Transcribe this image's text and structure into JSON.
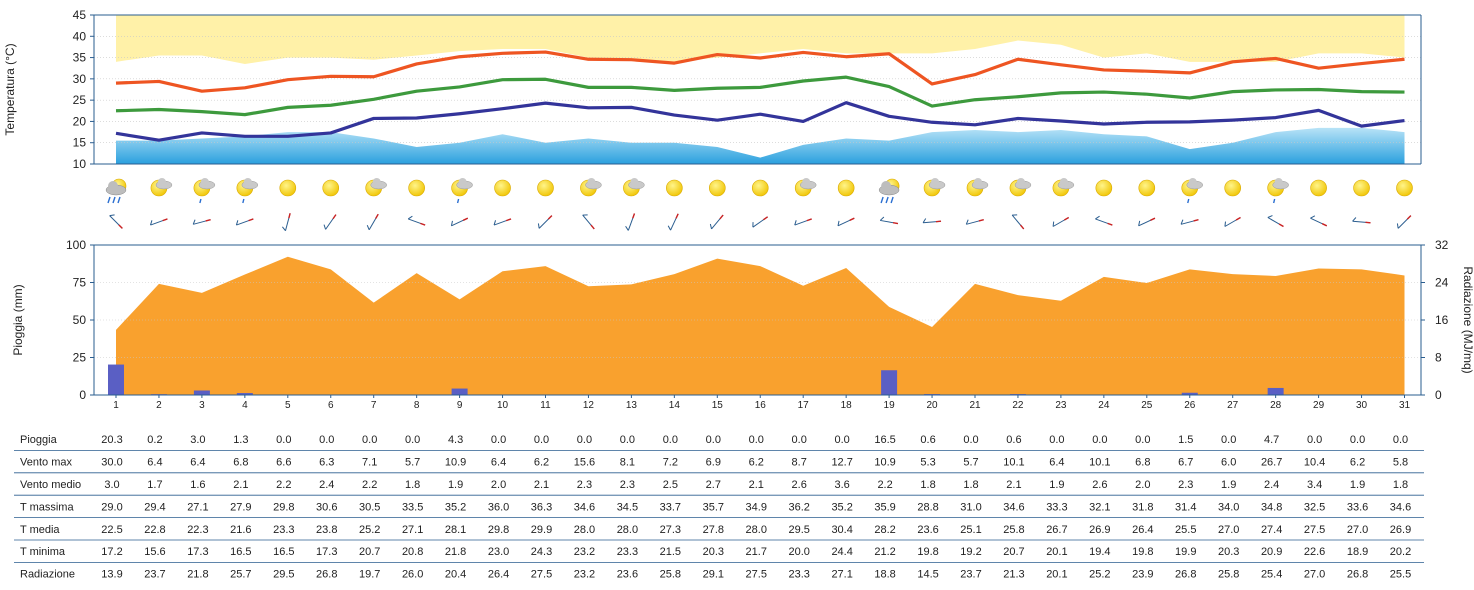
{
  "chart_data": [
    {
      "type": "line",
      "ylabel": "Temperatura (°C)",
      "ylim": [
        10,
        45
      ],
      "yticks": [
        10,
        15,
        20,
        25,
        30,
        35,
        40,
        45
      ],
      "x": [
        1,
        2,
        3,
        4,
        5,
        6,
        7,
        8,
        9,
        10,
        11,
        12,
        13,
        14,
        15,
        16,
        17,
        18,
        19,
        20,
        21,
        22,
        23,
        24,
        25,
        26,
        27,
        28,
        29,
        30,
        31
      ],
      "series": [
        {
          "key": "tmax",
          "color": "#ee5522",
          "values": [
            29.0,
            29.4,
            27.1,
            27.9,
            29.8,
            30.6,
            30.5,
            33.5,
            35.2,
            36.0,
            36.3,
            34.6,
            34.5,
            33.7,
            35.7,
            34.9,
            36.2,
            35.2,
            35.9,
            28.8,
            31.0,
            34.6,
            33.3,
            32.1,
            31.8,
            31.4,
            34.0,
            34.8,
            32.5,
            33.6,
            34.6
          ]
        },
        {
          "key": "tmedia",
          "color": "#3d9a3d",
          "values": [
            22.5,
            22.8,
            22.3,
            21.6,
            23.3,
            23.8,
            25.2,
            27.1,
            28.1,
            29.8,
            29.9,
            28.0,
            28.0,
            27.3,
            27.8,
            28.0,
            29.5,
            30.4,
            28.2,
            23.6,
            25.1,
            25.8,
            26.7,
            26.9,
            26.4,
            25.5,
            27.0,
            27.4,
            27.5,
            27.0,
            26.9
          ]
        },
        {
          "key": "tmin",
          "color": "#33349a",
          "values": [
            17.2,
            15.6,
            17.3,
            16.5,
            16.5,
            17.3,
            20.7,
            20.8,
            21.8,
            23.0,
            24.3,
            23.2,
            23.3,
            21.5,
            20.3,
            21.7,
            20.0,
            24.4,
            21.2,
            19.8,
            19.2,
            20.7,
            20.1,
            19.4,
            19.8,
            19.9,
            20.3,
            20.9,
            22.6,
            18.9,
            20.2
          ]
        }
      ],
      "bands": {
        "upper_band_top": [
          34,
          35.5,
          35.5,
          33.5,
          35,
          35,
          34.5,
          35.5,
          36.5,
          37,
          37,
          35,
          34.5,
          34,
          35,
          36,
          37,
          36,
          36,
          36,
          37,
          39,
          38,
          35,
          36,
          34,
          34,
          34,
          36,
          36,
          35
        ],
        "lower_band_top": [
          15.5,
          15.5,
          16,
          16.5,
          17.5,
          17.5,
          16,
          14,
          15,
          17,
          15,
          16,
          15,
          15,
          14,
          11.5,
          14.5,
          16,
          15.5,
          17.5,
          18,
          17.5,
          18,
          17,
          16.5,
          13.5,
          15,
          17.5,
          18.5,
          18.5,
          17.5
        ]
      }
    },
    {
      "type": "bar",
      "ylabel": "Pioggia (mm)",
      "ylabel_right": "Radiazione (MJ/mq)",
      "ylim": [
        0,
        100
      ],
      "yticks": [
        0,
        25,
        50,
        75,
        100
      ],
      "ylim_right": [
        0,
        32
      ],
      "yticks_right": [
        0,
        8,
        16,
        24,
        32
      ],
      "categories": [
        "1",
        "2",
        "3",
        "4",
        "5",
        "6",
        "7",
        "8",
        "9",
        "10",
        "11",
        "12",
        "13",
        "14",
        "15",
        "16",
        "17",
        "18",
        "19",
        "20",
        "21",
        "22",
        "23",
        "24",
        "25",
        "26",
        "27",
        "28",
        "29",
        "30",
        "31"
      ],
      "series": [
        {
          "key": "pioggia",
          "color": "#5a5fc4",
          "values": [
            20.3,
            0.2,
            3.0,
            1.3,
            0.0,
            0.0,
            0.0,
            0.0,
            4.3,
            0.0,
            0.0,
            0.0,
            0.0,
            0.0,
            0.0,
            0.0,
            0.0,
            0.0,
            16.5,
            0.6,
            0.0,
            0.6,
            0.0,
            0.0,
            0.0,
            1.5,
            0.0,
            4.7,
            0.0,
            0.0,
            0.0
          ]
        },
        {
          "key": "radiazione",
          "color": "#f9a12e",
          "values": [
            13.9,
            23.7,
            21.8,
            25.7,
            29.5,
            26.8,
            19.7,
            26.0,
            20.4,
            26.4,
            27.5,
            23.2,
            23.6,
            25.8,
            29.1,
            27.5,
            23.3,
            27.1,
            18.8,
            14.5,
            23.7,
            21.3,
            20.1,
            25.2,
            23.9,
            26.8,
            25.8,
            25.4,
            27.0,
            26.8,
            25.5
          ]
        }
      ]
    },
    {
      "type": "table",
      "rows": [
        {
          "label": "Pioggia",
          "values": [
            "20.3",
            "0.2",
            "3.0",
            "1.3",
            "0.0",
            "0.0",
            "0.0",
            "0.0",
            "4.3",
            "0.0",
            "0.0",
            "0.0",
            "0.0",
            "0.0",
            "0.0",
            "0.0",
            "0.0",
            "0.0",
            "16.5",
            "0.6",
            "0.0",
            "0.6",
            "0.0",
            "0.0",
            "0.0",
            "1.5",
            "0.0",
            "4.7",
            "0.0",
            "0.0",
            "0.0"
          ]
        },
        {
          "label": "Vento max",
          "values": [
            "30.0",
            "6.4",
            "6.4",
            "6.8",
            "6.6",
            "6.3",
            "7.1",
            "5.7",
            "10.9",
            "6.4",
            "6.2",
            "15.6",
            "8.1",
            "7.2",
            "6.9",
            "6.2",
            "8.7",
            "12.7",
            "10.9",
            "5.3",
            "5.7",
            "10.1",
            "6.4",
            "10.1",
            "6.8",
            "6.7",
            "6.0",
            "26.7",
            "10.4",
            "6.2",
            "5.8"
          ]
        },
        {
          "label": "Vento medio",
          "values": [
            "3.0",
            "1.7",
            "1.6",
            "2.1",
            "2.2",
            "2.4",
            "2.2",
            "1.8",
            "1.9",
            "2.0",
            "2.1",
            "2.3",
            "2.3",
            "2.5",
            "2.7",
            "2.1",
            "2.6",
            "3.6",
            "2.2",
            "1.8",
            "1.8",
            "2.1",
            "1.9",
            "2.6",
            "2.0",
            "2.3",
            "1.9",
            "2.4",
            "3.4",
            "1.9",
            "1.8"
          ]
        },
        {
          "label": "T massima",
          "values": [
            "29.0",
            "29.4",
            "27.1",
            "27.9",
            "29.8",
            "30.6",
            "30.5",
            "33.5",
            "35.2",
            "36.0",
            "36.3",
            "34.6",
            "34.5",
            "33.7",
            "35.7",
            "34.9",
            "36.2",
            "35.2",
            "35.9",
            "28.8",
            "31.0",
            "34.6",
            "33.3",
            "32.1",
            "31.8",
            "31.4",
            "34.0",
            "34.8",
            "32.5",
            "33.6",
            "34.6"
          ]
        },
        {
          "label": "T media",
          "values": [
            "22.5",
            "22.8",
            "22.3",
            "21.6",
            "23.3",
            "23.8",
            "25.2",
            "27.1",
            "28.1",
            "29.8",
            "29.9",
            "28.0",
            "28.0",
            "27.3",
            "27.8",
            "28.0",
            "29.5",
            "30.4",
            "28.2",
            "23.6",
            "25.1",
            "25.8",
            "26.7",
            "26.9",
            "26.4",
            "25.5",
            "27.0",
            "27.4",
            "27.5",
            "27.0",
            "26.9"
          ]
        },
        {
          "label": "T minima",
          "values": [
            "17.2",
            "15.6",
            "17.3",
            "16.5",
            "16.5",
            "17.3",
            "20.7",
            "20.8",
            "21.8",
            "23.0",
            "24.3",
            "23.2",
            "23.3",
            "21.5",
            "20.3",
            "21.7",
            "20.0",
            "24.4",
            "21.2",
            "19.8",
            "19.2",
            "20.7",
            "20.1",
            "19.4",
            "19.8",
            "19.9",
            "20.3",
            "20.9",
            "22.6",
            "18.9",
            "20.2"
          ]
        },
        {
          "label": "Radiazione",
          "values": [
            "13.9",
            "23.7",
            "21.8",
            "25.7",
            "29.5",
            "26.8",
            "19.7",
            "26.0",
            "20.4",
            "26.4",
            "27.5",
            "23.2",
            "23.6",
            "25.8",
            "29.1",
            "27.5",
            "23.3",
            "27.1",
            "18.8",
            "14.5",
            "23.7",
            "21.3",
            "20.1",
            "25.2",
            "23.9",
            "26.8",
            "25.8",
            "25.4",
            "27.0",
            "26.8",
            "25.5"
          ]
        }
      ]
    }
  ],
  "weather_icons": [
    "sun-cloud-rain-icon",
    "sun-cloud-icon",
    "sun-shower-icon",
    "sun-shower-icon",
    "sun-icon",
    "sun-icon",
    "sun-cloud-icon",
    "sun-icon",
    "sun-shower-icon",
    "sun-icon",
    "sun-icon",
    "sun-cloud-icon",
    "sun-cloud-icon",
    "sun-icon",
    "sun-icon",
    "sun-icon",
    "sun-cloud-icon",
    "sun-icon",
    "sun-cloud-rain-icon",
    "sun-cloud-icon",
    "sun-cloud-icon",
    "sun-cloud-icon",
    "sun-cloud-icon",
    "sun-icon",
    "sun-icon",
    "sun-shower-icon",
    "sun-icon",
    "sun-shower-icon",
    "sun-icon",
    "sun-icon",
    "sun-icon"
  ],
  "wind_direction_deg": [
    315,
    250,
    255,
    250,
    195,
    215,
    210,
    290,
    245,
    250,
    225,
    320,
    200,
    205,
    220,
    235,
    250,
    245,
    280,
    265,
    255,
    320,
    240,
    290,
    245,
    255,
    240,
    300,
    295,
    275,
    225
  ],
  "colors": {
    "axis": "#2a5d8f",
    "grid": "#c8c8c8",
    "upper_band": "#fff1a8",
    "lower_band_top": "#a9dcf5",
    "lower_band_bottom": "#2aa3e0",
    "row_rule": "#2a5d8f",
    "sun": "#f2d21a",
    "sun_edge": "#d9a900",
    "cloud": "#c9c9c9",
    "rain": "#2b6fd1",
    "wind_head": "#cc2222",
    "wind_body": "#2a5d8f"
  }
}
